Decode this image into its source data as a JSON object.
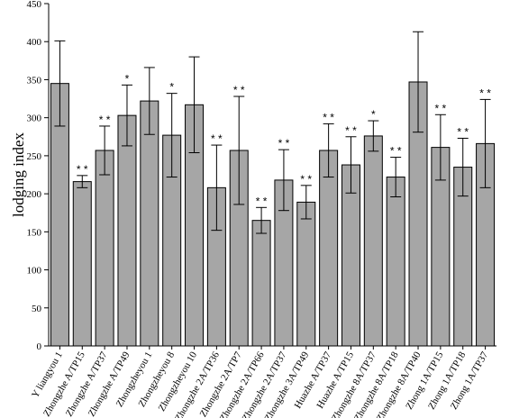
{
  "chart_data": {
    "type": "bar",
    "title": "",
    "xlabel": "",
    "ylabel": "lodging index",
    "ylim": [
      0,
      450
    ],
    "yticks": [
      0,
      50,
      100,
      150,
      200,
      250,
      300,
      350,
      400,
      450
    ],
    "grid": false,
    "bar_color": "#a6a6a6",
    "categories": [
      "Y liangyou 1",
      "Zhongzhe A/TP15",
      "Zhongzhe A/TP37",
      "Zhongzhe A/TP49",
      "Zhongzheyou 1",
      "Zhongzheyou 8",
      "Zhongzheyou 10",
      "Zhongzhe 2A/TP36",
      "Zhongzhe 2A/TP7",
      "Zhongzhe 2A/TP66",
      "Zhongzhe 2A/TP37",
      "Zhongzhe 3A/TP49",
      "Huazhe A/TP37",
      "Huazhe A/TP15",
      "Zhongzhe 8A/TP37",
      "Zhongzhe 8A/TP18",
      "Zhongzhe 8A/TP40",
      "Zhong 1A/TP15",
      "Zhong 1A/TP18",
      "Zhong 1A/TP37"
    ],
    "values": [
      345,
      216,
      257,
      303,
      322,
      277,
      317,
      208,
      257,
      165,
      218,
      189,
      257,
      238,
      276,
      222,
      347,
      261,
      235,
      266
    ],
    "errors": [
      56,
      8,
      32,
      40,
      44,
      55,
      63,
      56,
      71,
      17,
      40,
      22,
      35,
      37,
      20,
      26,
      66,
      43,
      38,
      58
    ],
    "significance": [
      "",
      "* *",
      "* *",
      "*",
      "",
      "*",
      "",
      "* *",
      "* *",
      "* *",
      "* *",
      "* *",
      "* *",
      "* *",
      "*",
      "* *",
      "",
      "* *",
      "* *",
      "* *"
    ]
  }
}
